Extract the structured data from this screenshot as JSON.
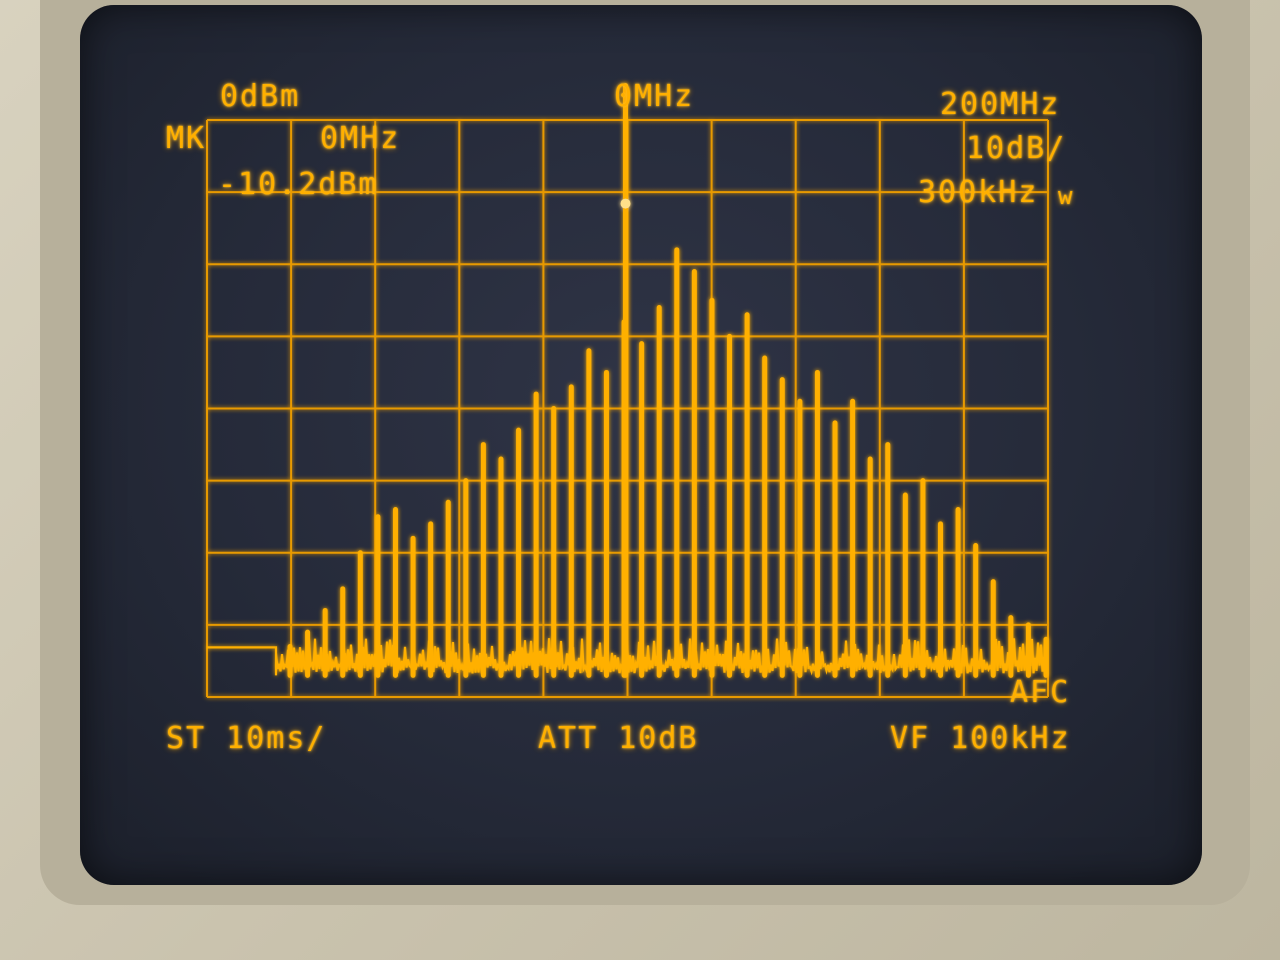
{
  "header": {
    "ref_level": "0dBm",
    "center_freq": "0MHz",
    "span": "200MHz"
  },
  "marker": {
    "label": "MK",
    "freq": "0MHz",
    "level": "-10.2dBm"
  },
  "settings_right": {
    "scale": "10dB/",
    "rbw": "300kHz",
    "rbw_suffix": "w"
  },
  "footer": {
    "sweep_time": "ST 10ms/",
    "attenuation": "ATT 10dB",
    "video_filter": "VF 100kHz",
    "afc": "AFC"
  },
  "colors": {
    "phosphor": "#ffb000",
    "grid": "#e89a00",
    "screen": "#262b3a"
  },
  "spectrum": {
    "noise_floor_db": -77,
    "carrier_db": -10.2,
    "carrier_peak_db": 2,
    "sidebands_db": [
      -73,
      -71,
      -68,
      -65,
      -60,
      -55,
      -54,
      -58,
      -56,
      -53,
      -50,
      -45,
      -47,
      -43,
      -38,
      -40,
      -37,
      -32,
      -35,
      -28,
      -31,
      -26,
      -18,
      -21,
      -25,
      -30,
      -27,
      -33,
      -36,
      -39,
      -35,
      -42,
      -39,
      -47,
      -45,
      -52,
      -50,
      -56,
      -54,
      -59,
      -64,
      -69,
      -70,
      -72
    ]
  }
}
